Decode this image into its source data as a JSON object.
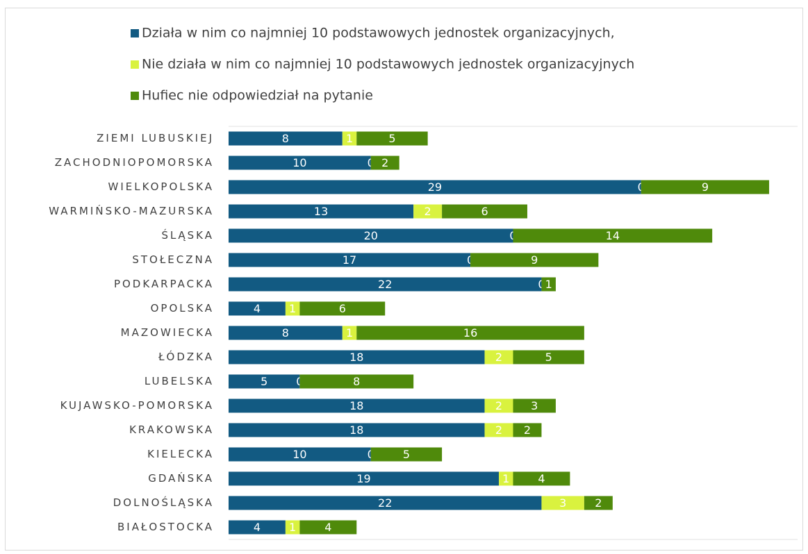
{
  "chart_data": {
    "type": "stacked-barh",
    "categories": [
      "ZIEMI LUBUSKIEJ",
      "ZACHODNIOPOMORSKA",
      "WIELKOPOLSKA",
      "WARMIŃSKO-MAZURSKA",
      "ŚLĄSKA",
      "STOŁECZNA",
      "PODKARPACKA",
      "OPOLSKA",
      "MAZOWIECKA",
      "ŁÓDZKA",
      "LUBELSKA",
      "KUJAWSKO-POMORSKA",
      "KRAKOWSKA",
      "KIELECKA",
      "GDAŃSKA",
      "DOLNOŚLĄSKA",
      "BIAŁOSTOCKA"
    ],
    "series": [
      {
        "name": "Działa w nim co najmniej 10 podstawowych jednostek organizacyjnych,",
        "color": "#125a82",
        "values": [
          8,
          10,
          29,
          13,
          20,
          17,
          22,
          4,
          8,
          18,
          5,
          18,
          18,
          10,
          19,
          22,
          4
        ]
      },
      {
        "name": "Nie działa w nim co najmniej 10 podstawowych jednostek organizacyjnych",
        "color": "#d9f23f",
        "values": [
          1,
          0,
          0,
          2,
          0,
          0,
          0,
          1,
          1,
          2,
          0,
          2,
          2,
          0,
          1,
          3,
          1
        ]
      },
      {
        "name": "Hufiec nie odpowiedział na pytanie",
        "color": "#4f8a0b",
        "values": [
          5,
          2,
          9,
          6,
          14,
          9,
          1,
          6,
          16,
          5,
          8,
          3,
          2,
          5,
          4,
          2,
          4
        ]
      }
    ],
    "xlim": [
      0,
      40
    ],
    "legend": "top"
  }
}
